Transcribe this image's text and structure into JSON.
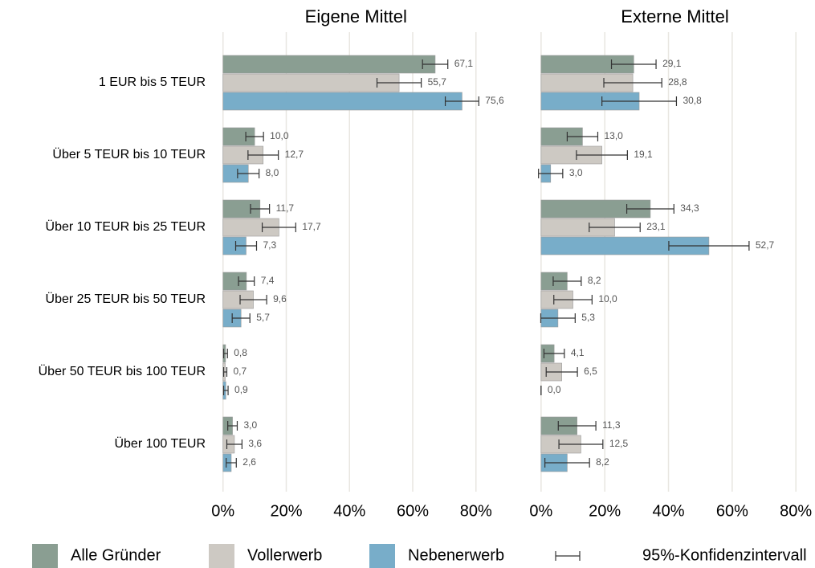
{
  "chart_data": [
    {
      "type": "hbar",
      "title": "Eigene Mittel",
      "categories": [
        "1 EUR bis 5 TEUR",
        "Über 5 TEUR bis 10 TEUR",
        "Über 10 TEUR bis 25 TEUR",
        "Über 25 TEUR bis 50 TEUR",
        "Über 50 TEUR bis 100 TEUR",
        "Über 100 TEUR"
      ],
      "series": [
        {
          "name": "Alle Gründer",
          "color": "#8a9e92",
          "values": [
            67.1,
            10.0,
            11.7,
            7.4,
            0.8,
            3.0
          ],
          "value_labels": [
            "67,1",
            "10,0",
            "11,7",
            "7,4",
            "0,8",
            "3,0"
          ],
          "errors": [
            4,
            2.8,
            3,
            2.5,
            0.6,
            1.5
          ]
        },
        {
          "name": "Vollerwerb",
          "color": "#cdc9c3",
          "values": [
            55.7,
            12.7,
            17.7,
            9.6,
            0.7,
            3.6
          ],
          "value_labels": [
            "55,7",
            "12,7",
            "17,7",
            "9,6",
            "0,7",
            "3,6"
          ],
          "errors": [
            7,
            4.8,
            5.3,
            4.2,
            0.5,
            2.4
          ]
        },
        {
          "name": "Nebenerwerb",
          "color": "#78adc9",
          "values": [
            75.6,
            8.0,
            7.3,
            5.7,
            0.9,
            2.6
          ],
          "value_labels": [
            "75,6",
            "8,0",
            "7,3",
            "5,7",
            "0,9",
            "2,6"
          ],
          "errors": [
            5.3,
            3.4,
            3.3,
            2.8,
            0.7,
            1.6
          ]
        }
      ],
      "xlim": [
        -4,
        92
      ],
      "xticks": [
        {
          "value": 0,
          "label": "0%"
        },
        {
          "value": 20,
          "label": "20%"
        },
        {
          "value": 40,
          "label": "40%"
        },
        {
          "value": 60,
          "label": "60%"
        },
        {
          "value": 80,
          "label": "80%"
        }
      ],
      "grid": true
    },
    {
      "type": "hbar",
      "title": "Externe Mittel",
      "series": [
        {
          "name": "Alle Gründer",
          "color": "#8a9e92",
          "values": [
            29.1,
            13.0,
            34.3,
            8.2,
            4.1,
            11.3
          ],
          "value_labels": [
            "29,1",
            "13,0",
            "34,3",
            "8,2",
            "4,1",
            "11,3"
          ],
          "errors": [
            7,
            4.8,
            7.4,
            4.4,
            3.2,
            5.9
          ]
        },
        {
          "name": "Vollerwerb",
          "color": "#cdc9c3",
          "values": [
            28.8,
            19.1,
            23.1,
            10.0,
            6.5,
            12.5
          ],
          "value_labels": [
            "28,8",
            "19,1",
            "23,1",
            "10,0",
            "6,5",
            "12,5"
          ],
          "errors": [
            9.1,
            8,
            8,
            6,
            4.9,
            6.9
          ]
        },
        {
          "name": "Nebenerwerb",
          "color": "#78adc9",
          "values": [
            30.8,
            3.0,
            52.7,
            5.3,
            0.0,
            8.2
          ],
          "value_labels": [
            "30,8",
            "3,0",
            "52,7",
            "5,3",
            "0,0",
            "8,2"
          ],
          "errors": [
            11.7,
            3.8,
            12.6,
            5.4,
            0,
            7
          ]
        }
      ],
      "xlim": [
        -4,
        86
      ],
      "xticks": [
        {
          "value": 0,
          "label": "0%"
        },
        {
          "value": 20,
          "label": "20%"
        },
        {
          "value": 40,
          "label": "40%"
        },
        {
          "value": 60,
          "label": "60%"
        },
        {
          "value": 80,
          "label": "80%"
        }
      ],
      "grid": true
    }
  ],
  "legend": {
    "ci_label": "95%-Konfidenzintervall"
  }
}
